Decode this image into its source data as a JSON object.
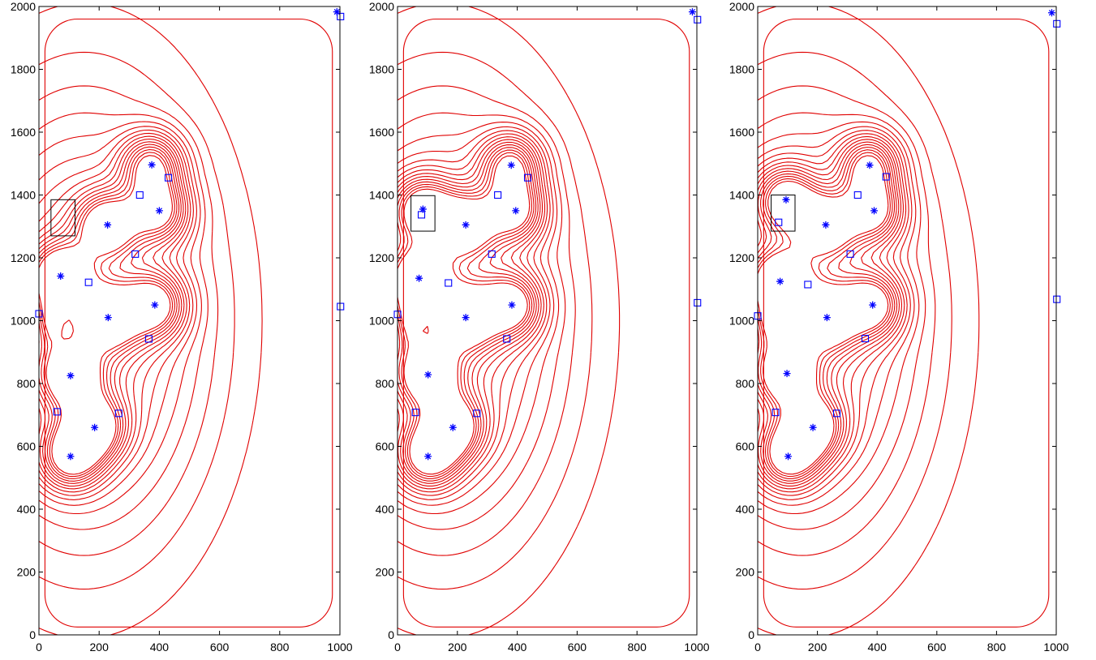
{
  "colors": {
    "contour": "#e00000",
    "markers": "#0000ff",
    "axes": "#000000"
  },
  "chart_data": [
    {
      "type": "contour",
      "title": "",
      "xlabel": "",
      "ylabel": "",
      "xlim": [
        0,
        1000
      ],
      "ylim": [
        0,
        2000
      ],
      "xticks": [
        0,
        200,
        400,
        600,
        800,
        1000
      ],
      "yticks": [
        0,
        200,
        400,
        600,
        800,
        1000,
        1200,
        1400,
        1600,
        1800,
        2000
      ],
      "grid": false,
      "star_markers": [
        [
          990,
          1983
        ],
        [
          375,
          1496
        ],
        [
          400,
          1350
        ],
        [
          228,
          1305
        ],
        [
          72,
          1142
        ],
        [
          385,
          1050
        ],
        [
          230,
          1010
        ],
        [
          105,
          825
        ],
        [
          185,
          660
        ],
        [
          105,
          568
        ]
      ],
      "square_markers": [
        [
          1002,
          1968
        ],
        [
          430,
          1455
        ],
        [
          335,
          1400
        ],
        [
          320,
          1212
        ],
        [
          165,
          1122
        ],
        [
          0,
          1022
        ],
        [
          1002,
          1045
        ],
        [
          365,
          942
        ],
        [
          60,
          710
        ],
        [
          265,
          705
        ]
      ],
      "rectangle": [
        40,
        1270,
        120,
        1385
      ]
    },
    {
      "type": "contour",
      "title": "",
      "xlabel": "",
      "ylabel": "",
      "xlim": [
        0,
        1000
      ],
      "ylim": [
        0,
        2000
      ],
      "xticks": [
        0,
        200,
        400,
        600,
        800,
        1000
      ],
      "yticks": [
        0,
        200,
        400,
        600,
        800,
        1000,
        1200,
        1400,
        1600,
        1800,
        2000
      ],
      "grid": false,
      "star_markers": [
        [
          985,
          1983
        ],
        [
          380,
          1495
        ],
        [
          395,
          1350
        ],
        [
          228,
          1305
        ],
        [
          85,
          1355
        ],
        [
          72,
          1135
        ],
        [
          382,
          1050
        ],
        [
          228,
          1010
        ],
        [
          102,
          828
        ],
        [
          185,
          660
        ],
        [
          102,
          568
        ]
      ],
      "square_markers": [
        [
          1002,
          1958
        ],
        [
          435,
          1455
        ],
        [
          335,
          1400
        ],
        [
          315,
          1212
        ],
        [
          80,
          1337
        ],
        [
          170,
          1120
        ],
        [
          0,
          1020
        ],
        [
          1002,
          1057
        ],
        [
          365,
          942
        ],
        [
          60,
          708
        ],
        [
          265,
          705
        ]
      ],
      "rectangle": [
        45,
        1285,
        125,
        1398
      ]
    },
    {
      "type": "contour",
      "title": "",
      "xlabel": "",
      "ylabel": "",
      "xlim": [
        0,
        1000
      ],
      "ylim": [
        0,
        2000
      ],
      "xticks": [
        0,
        200,
        400,
        600,
        800,
        1000
      ],
      "yticks": [
        0,
        200,
        400,
        600,
        800,
        1000,
        1200,
        1400,
        1600,
        1800,
        2000
      ],
      "grid": false,
      "star_markers": [
        [
          985,
          1980
        ],
        [
          375,
          1495
        ],
        [
          390,
          1350
        ],
        [
          228,
          1305
        ],
        [
          95,
          1385
        ],
        [
          75,
          1125
        ],
        [
          385,
          1050
        ],
        [
          232,
          1010
        ],
        [
          98,
          832
        ],
        [
          185,
          660
        ],
        [
          102,
          568
        ]
      ],
      "square_markers": [
        [
          1002,
          1945
        ],
        [
          430,
          1458
        ],
        [
          335,
          1400
        ],
        [
          310,
          1212
        ],
        [
          70,
          1313
        ],
        [
          168,
          1115
        ],
        [
          0,
          1015
        ],
        [
          1002,
          1068
        ],
        [
          360,
          943
        ],
        [
          60,
          708
        ],
        [
          265,
          705
        ]
      ],
      "rectangle": [
        45,
        1285,
        125,
        1400
      ]
    }
  ]
}
